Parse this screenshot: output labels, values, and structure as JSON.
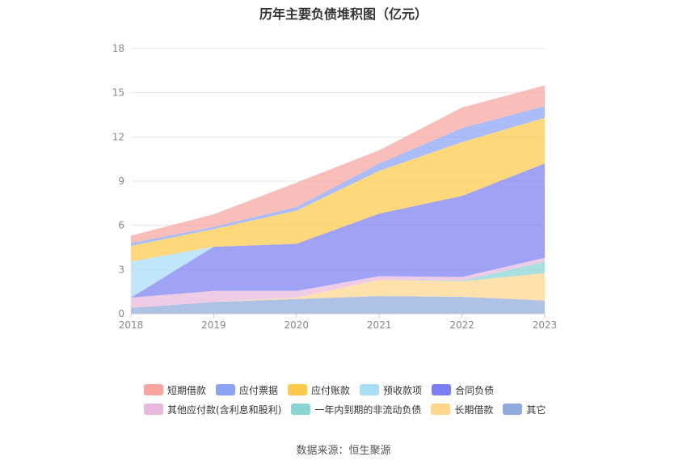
{
  "chart_data": {
    "type": "area",
    "stacked": true,
    "title": "历年主要负债堆积图（亿元）",
    "x": [
      "2018",
      "2019",
      "2020",
      "2021",
      "2022",
      "2023"
    ],
    "ylim": [
      0,
      18
    ],
    "yticks": [
      "0",
      "3",
      "6",
      "9",
      "12",
      "15",
      "18"
    ],
    "grid": true,
    "legend_position": "bottom",
    "series": [
      {
        "name": "其它",
        "color": "#8faadc",
        "values": [
          0.4,
          0.8,
          1.0,
          1.2,
          1.15,
          0.9
        ]
      },
      {
        "name": "长期借款",
        "color": "#ffd68a",
        "values": [
          0.0,
          0.0,
          0.1,
          1.1,
          1.05,
          1.85
        ]
      },
      {
        "name": "一年内到期的非流动负债",
        "color": "#8ad4d4",
        "values": [
          0.0,
          0.0,
          0.0,
          0.0,
          0.05,
          0.8
        ]
      },
      {
        "name": "其他应付款(含利息和股利)",
        "color": "#e8b9dc",
        "values": [
          0.7,
          0.75,
          0.45,
          0.25,
          0.25,
          0.25
        ]
      },
      {
        "name": "合同负债",
        "color": "#7b7ef2",
        "values": [
          0.0,
          3.0,
          3.2,
          4.25,
          5.5,
          6.4
        ]
      },
      {
        "name": "预收款项",
        "color": "#a8ddf6",
        "values": [
          2.45,
          0.0,
          0.0,
          0.0,
          0.0,
          0.0
        ]
      },
      {
        "name": "应付账款",
        "color": "#ffc94a",
        "values": [
          1.05,
          1.2,
          2.25,
          2.9,
          3.65,
          3.1
        ]
      },
      {
        "name": "应付票据",
        "color": "#8ba3f5",
        "values": [
          0.2,
          0.15,
          0.25,
          0.5,
          0.95,
          0.8
        ]
      },
      {
        "name": "短期借款",
        "color": "#f8a5a0",
        "values": [
          0.5,
          0.85,
          1.65,
          0.9,
          1.4,
          1.4
        ]
      }
    ],
    "legend_order": [
      "短期借款",
      "应付票据",
      "应付账款",
      "预收款项",
      "合同负债",
      "其他应付款(含利息和股利)",
      "一年内到期的非流动负债",
      "长期借款",
      "其它"
    ]
  },
  "source_text": "数据来源：恒生聚源"
}
